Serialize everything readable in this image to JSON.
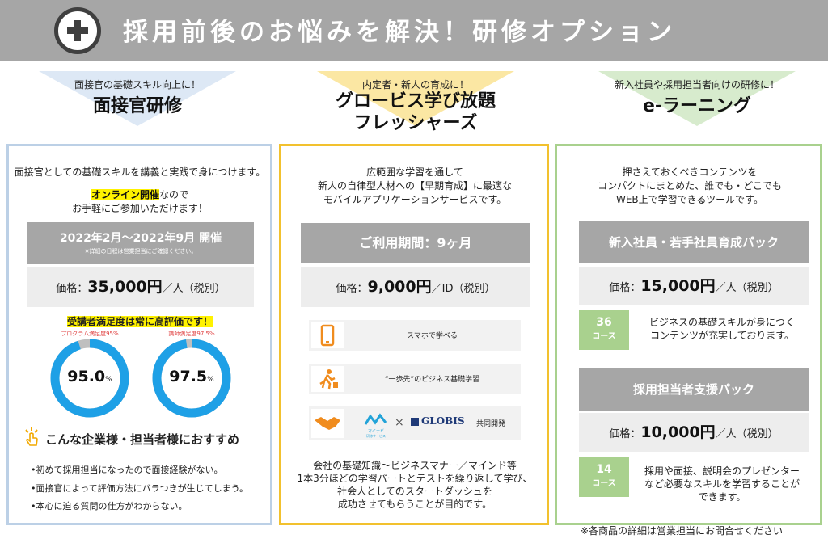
{
  "banner": {
    "title": "採用前後のお悩みを解決！研修オプション",
    "icon": "plus-circle-icon"
  },
  "col1": {
    "subtitle": "面接官の基礎スキル向上に！",
    "title": "面接官研修",
    "desc": "面接官としての基礎スキルを講義と実践で身につけます。",
    "online_highlight": "オンライン開催",
    "online_rest": "なので",
    "online_line2": "お手軽にご参加いただけます！",
    "period": "2022年2月～2022年9月 開催",
    "period_note": "※詳細の日程は営業担当にご確認ください。",
    "price_label": "価格：",
    "price": "35,000円",
    "price_unit": "／人（税別）",
    "satisfaction": "受講者満足度は常に高評価です！",
    "donut1_caption": "プログラム満足度95%",
    "donut1_value": "95.0",
    "donut1_pct": 95.0,
    "donut2_caption": "講師満足度97.5%",
    "donut2_value": "97.5",
    "donut2_pct": 97.5,
    "pct_sign": "%",
    "recommend_icon": "pointing-hand-icon",
    "recommend": "こんな企業様・担当者様におすすめ",
    "bullets": [
      "•初めて採用担当になったので面接経験がない。",
      "•面接官によって評価方法にバラつきが生じてしまう。",
      "•本心に迫る質問の仕方がわからない。"
    ]
  },
  "col2": {
    "subtitle": "内定者・新人の育成に！",
    "title_line1": "グロービス学び放題",
    "title_line2": "フレッシャーズ",
    "desc1": "広範囲な学習を通して",
    "desc2": "新人の自律型人材への【早期育成】に最適な",
    "desc3": "モバイルアプリケーションサービスです。",
    "period": "ご利用期間：9ヶ月",
    "price_label": "価格：",
    "price": "9,000円",
    "price_unit": "／ID（税別）",
    "features": [
      {
        "icon": "smartphone-icon",
        "text": "スマホで学べる"
      },
      {
        "icon": "running-person-icon",
        "text": "“一歩先”のビジネス基礎学習"
      },
      {
        "icon": "handshake-icon",
        "text": ""
      }
    ],
    "mynavi_text": "マイナビ",
    "mynavi_sub": "研修サービス",
    "cross": "×",
    "globis": "GLOBIS",
    "joint": "共同開発",
    "bottom1": "会社の基礎知識～ビジネスマナー／マインド等",
    "bottom2": "1本3分ほどの学習パートとテストを繰り返して学び、",
    "bottom3": "社会人としてのスタートダッシュを",
    "bottom4": "成功させてもらうことが目的です。"
  },
  "col3": {
    "subtitle": "新入社員や採用担当者向けの研修に！",
    "title": "e-ラーニング",
    "desc1": "押さえておくべきコンテンツを",
    "desc2": "コンパクトにまとめた、誰でも・どこでも",
    "desc3": "WEB上で学習できるツールです。",
    "pack1": {
      "name": "新入社員・若手社員育成パック",
      "price_label": "価格：",
      "price": "15,000円",
      "price_unit": "／人（税別）",
      "count": "36",
      "course": "コース",
      "desc1": "ビジネスの基礎スキルが身につく",
      "desc2": "コンテンツが充実しております。"
    },
    "pack2": {
      "name": "採用担当者支援パック",
      "price_label": "価格：",
      "price": "10,000円",
      "price_unit": "／人（税別）",
      "count": "14",
      "course": "コース",
      "desc1": "採用や面接、説明会のプレゼンター",
      "desc2": "など必要なスキルを学習することが",
      "desc3": "できます。"
    }
  },
  "footer_note": "※各商品の詳細は営業担当にお問合せください",
  "colors": {
    "banner": "#a6a6a6",
    "blue": "#bcd0e6",
    "yellow": "#f2c12e",
    "green": "#a9d18e",
    "donut": "#1ea0e6"
  }
}
